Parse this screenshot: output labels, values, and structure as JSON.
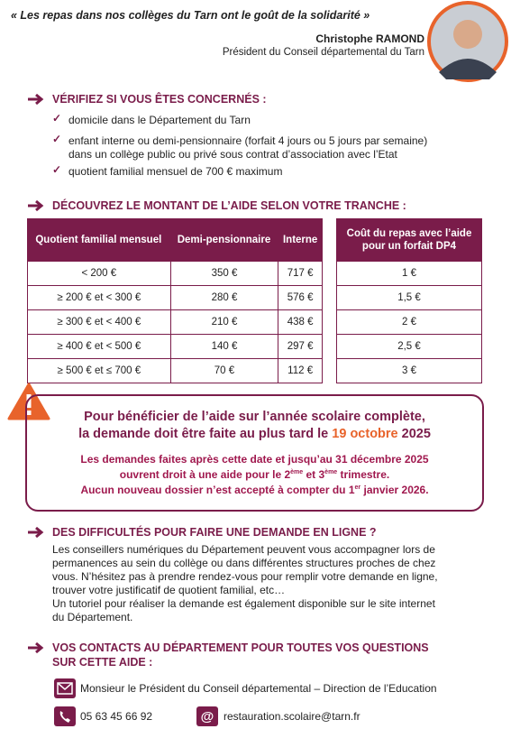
{
  "header": {
    "quote": "« Les repas dans nos collèges du Tarn ont le goût de la solidarité »",
    "name": "Christophe RAMOND",
    "role": "Président du Conseil départemental du Tarn"
  },
  "eligibility": {
    "title": "VÉRIFIEZ SI VOUS ÊTES CONCERNÉS :",
    "items": [
      [
        "domicile dans le Département du Tarn"
      ],
      [
        "enfant interne ou demi-pensionnaire (forfait 4 jours ou 5 jours par semaine)",
        "dans un collège public ou privé sous contrat d’association avec l’Etat"
      ],
      [
        "quotient familial mensuel de 700 € maximum"
      ]
    ]
  },
  "amounts": {
    "title": "DÉCOUVREZ LE MONTANT DE L’AIDE SELON VOTRE TRANCHE :",
    "table": {
      "headers": [
        "Quotient familial mensuel",
        "Demi-pensionnaire",
        "Interne"
      ],
      "rows": [
        [
          "< 200 €",
          "350 €",
          "717 €"
        ],
        [
          "≥ 200 € et < 300 €",
          "280 €",
          "576 €"
        ],
        [
          "≥ 300 € et < 400 €",
          "210 €",
          "438 €"
        ],
        [
          "≥ 400 € et < 500 €",
          "140 €",
          "297 €"
        ],
        [
          "≥ 500 € et ≤ 700 €",
          "70 €",
          "112 €"
        ]
      ]
    },
    "cost_table": {
      "header": "Coût du repas avec l’aide pour un forfait DP4",
      "rows": [
        "1 €",
        "1,5 €",
        "2 €",
        "2,5 €",
        "3 €"
      ]
    }
  },
  "notice": {
    "line1": "Pour bénéficier de l’aide sur l’année scolaire complète,",
    "line2": "la demande doit être faite au plus tard le ",
    "date": "19 octobre",
    "year": " 2025",
    "body1": "Les demandes faites après cette date et jusqu’au 31 décembre 2025",
    "body2": [
      "ouvrent droit à une aide pour le 2",
      "ème",
      " et 3",
      "ème",
      " trimestre."
    ],
    "body3": [
      "Aucun nouveau dossier n’est accepté à compter du 1",
      "er",
      " janvier 2026."
    ]
  },
  "help": {
    "title": "DES DIFFICULTÉS POUR FAIRE UNE DEMANDE EN LIGNE ?",
    "lines": [
      "Les conseillers numériques du Département peuvent vous accompagner lors de",
      "permanences au sein du collège ou dans différentes structures proches de chez",
      "vous. N’hésitez pas à prendre rendez-vous pour remplir votre demande en ligne,",
      "trouver votre justificatif de quotient familial, etc…",
      "Un tutoriel pour réaliser la demande est également disponible sur le site internet",
      "du Département."
    ]
  },
  "contacts": {
    "title": [
      "VOS CONTACTS AU DÉPARTEMENT POUR TOUTES VOS QUESTIONS",
      "SUR CETTE AIDE :"
    ],
    "address": "Monsieur le Président du Conseil départemental – Direction de l’Education",
    "phone": "05 63 45 66 92",
    "email": "restauration.scolaire@tarn.fr"
  }
}
